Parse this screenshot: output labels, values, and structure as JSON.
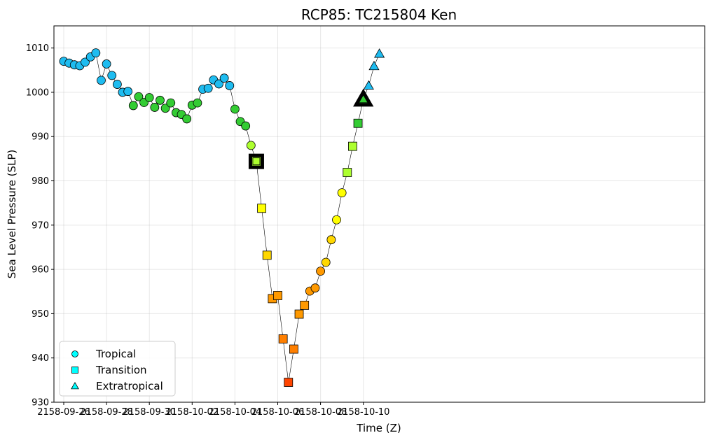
{
  "chart_data": {
    "type": "scatter",
    "title": "RCP85: TC215804 Ken",
    "xlabel": "Time (Z)",
    "ylabel": "Sea Level Pressure (SLP)",
    "ylim": [
      930,
      1015
    ],
    "yticks": [
      930,
      940,
      950,
      960,
      970,
      980,
      990,
      1000,
      1010
    ],
    "xticks": [
      "2158-09-26",
      "2158-09-28",
      "2158-09-30",
      "2158-10-02",
      "2158-10-04",
      "2158-10-06",
      "2158-10-08",
      "2158-10-10"
    ],
    "grid": true,
    "legend_position": "lower-left",
    "legend": [
      {
        "label": "Tropical",
        "marker": "circle"
      },
      {
        "label": "Transition",
        "marker": "square"
      },
      {
        "label": "Extratropical",
        "marker": "triangle"
      }
    ],
    "colors": {
      "TD": "#1ebcf0",
      "TS": "#33cc33",
      "C0": "#adff2f",
      "C1": "#ffff00",
      "C2": "#ffd700",
      "C3": "#ff9900",
      "C4": "#ff7f00",
      "C5": "#ff4500"
    },
    "points": [
      {
        "t": "2158-09-26 00:00",
        "slp": 1007.0,
        "phase": "Tropical",
        "cat": "TD"
      },
      {
        "t": "2158-09-26 06:00",
        "slp": 1006.6,
        "phase": "Tropical",
        "cat": "TD"
      },
      {
        "t": "2158-09-26 12:00",
        "slp": 1006.2,
        "phase": "Tropical",
        "cat": "TD"
      },
      {
        "t": "2158-09-26 18:00",
        "slp": 1006.0,
        "phase": "Tropical",
        "cat": "TD"
      },
      {
        "t": "2158-09-27 00:00",
        "slp": 1006.8,
        "phase": "Tropical",
        "cat": "TD"
      },
      {
        "t": "2158-09-27 06:00",
        "slp": 1008.0,
        "phase": "Tropical",
        "cat": "TD"
      },
      {
        "t": "2158-09-27 12:00",
        "slp": 1008.9,
        "phase": "Tropical",
        "cat": "TD"
      },
      {
        "t": "2158-09-27 18:00",
        "slp": 1002.7,
        "phase": "Tropical",
        "cat": "TD"
      },
      {
        "t": "2158-09-28 00:00",
        "slp": 1006.4,
        "phase": "Tropical",
        "cat": "TD"
      },
      {
        "t": "2158-09-28 06:00",
        "slp": 1003.8,
        "phase": "Tropical",
        "cat": "TD"
      },
      {
        "t": "2158-09-28 12:00",
        "slp": 1001.8,
        "phase": "Tropical",
        "cat": "TD"
      },
      {
        "t": "2158-09-28 18:00",
        "slp": 1000.0,
        "phase": "Tropical",
        "cat": "TD"
      },
      {
        "t": "2158-09-29 00:00",
        "slp": 1000.2,
        "phase": "Tropical",
        "cat": "TD"
      },
      {
        "t": "2158-09-29 06:00",
        "slp": 997.0,
        "phase": "Tropical",
        "cat": "TS"
      },
      {
        "t": "2158-09-29 12:00",
        "slp": 999.0,
        "phase": "Tropical",
        "cat": "TS"
      },
      {
        "t": "2158-09-29 18:00",
        "slp": 997.7,
        "phase": "Tropical",
        "cat": "TS"
      },
      {
        "t": "2158-09-30 00:00",
        "slp": 998.8,
        "phase": "Tropical",
        "cat": "TS"
      },
      {
        "t": "2158-09-30 06:00",
        "slp": 996.6,
        "phase": "Tropical",
        "cat": "TS"
      },
      {
        "t": "2158-09-30 12:00",
        "slp": 998.2,
        "phase": "Tropical",
        "cat": "TS"
      },
      {
        "t": "2158-09-30 18:00",
        "slp": 996.4,
        "phase": "Tropical",
        "cat": "TS"
      },
      {
        "t": "2158-10-01 00:00",
        "slp": 997.6,
        "phase": "Tropical",
        "cat": "TS"
      },
      {
        "t": "2158-10-01 06:00",
        "slp": 995.4,
        "phase": "Tropical",
        "cat": "TS"
      },
      {
        "t": "2158-10-01 12:00",
        "slp": 995.0,
        "phase": "Tropical",
        "cat": "TS"
      },
      {
        "t": "2158-10-01 18:00",
        "slp": 994.0,
        "phase": "Tropical",
        "cat": "TS"
      },
      {
        "t": "2158-10-02 00:00",
        "slp": 997.1,
        "phase": "Tropical",
        "cat": "TS"
      },
      {
        "t": "2158-10-02 06:00",
        "slp": 997.6,
        "phase": "Tropical",
        "cat": "TS"
      },
      {
        "t": "2158-10-02 12:00",
        "slp": 1000.7,
        "phase": "Tropical",
        "cat": "TD"
      },
      {
        "t": "2158-10-02 18:00",
        "slp": 1000.9,
        "phase": "Tropical",
        "cat": "TD"
      },
      {
        "t": "2158-10-03 00:00",
        "slp": 1002.8,
        "phase": "Tropical",
        "cat": "TD"
      },
      {
        "t": "2158-10-03 06:00",
        "slp": 1001.9,
        "phase": "Tropical",
        "cat": "TD"
      },
      {
        "t": "2158-10-03 12:00",
        "slp": 1003.2,
        "phase": "Tropical",
        "cat": "TD"
      },
      {
        "t": "2158-10-03 18:00",
        "slp": 1001.5,
        "phase": "Tropical",
        "cat": "TD"
      },
      {
        "t": "2158-10-04 00:00",
        "slp": 996.2,
        "phase": "Tropical",
        "cat": "TS"
      },
      {
        "t": "2158-10-04 06:00",
        "slp": 993.4,
        "phase": "Tropical",
        "cat": "TS"
      },
      {
        "t": "2158-10-04 12:00",
        "slp": 992.4,
        "phase": "Tropical",
        "cat": "TS"
      },
      {
        "t": "2158-10-04 18:00",
        "slp": 988.0,
        "phase": "Tropical",
        "cat": "C0"
      },
      {
        "t": "2158-10-05 00:00",
        "slp": 984.4,
        "phase": "Transition",
        "cat": "C0",
        "highlight": true
      },
      {
        "t": "2158-10-05 06:00",
        "slp": 973.8,
        "phase": "Transition",
        "cat": "C1"
      },
      {
        "t": "2158-10-05 12:00",
        "slp": 963.2,
        "phase": "Transition",
        "cat": "C2"
      },
      {
        "t": "2158-10-05 18:00",
        "slp": 953.4,
        "phase": "Transition",
        "cat": "C3"
      },
      {
        "t": "2158-10-06 00:00",
        "slp": 954.1,
        "phase": "Transition",
        "cat": "C3"
      },
      {
        "t": "2158-10-06 06:00",
        "slp": 944.3,
        "phase": "Transition",
        "cat": "C4"
      },
      {
        "t": "2158-10-06 12:00",
        "slp": 934.5,
        "phase": "Transition",
        "cat": "C5"
      },
      {
        "t": "2158-10-06 18:00",
        "slp": 942.0,
        "phase": "Transition",
        "cat": "C4"
      },
      {
        "t": "2158-10-07 00:00",
        "slp": 949.9,
        "phase": "Transition",
        "cat": "C3"
      },
      {
        "t": "2158-10-07 06:00",
        "slp": 951.9,
        "phase": "Transition",
        "cat": "C3"
      },
      {
        "t": "2158-10-07 12:00",
        "slp": 955.1,
        "phase": "Tropical",
        "cat": "C3"
      },
      {
        "t": "2158-10-07 18:00",
        "slp": 955.8,
        "phase": "Tropical",
        "cat": "C3"
      },
      {
        "t": "2158-10-08 00:00",
        "slp": 959.6,
        "phase": "Tropical",
        "cat": "C3"
      },
      {
        "t": "2158-10-08 06:00",
        "slp": 961.6,
        "phase": "Tropical",
        "cat": "C2"
      },
      {
        "t": "2158-10-08 12:00",
        "slp": 966.7,
        "phase": "Tropical",
        "cat": "C2"
      },
      {
        "t": "2158-10-08 18:00",
        "slp": 971.2,
        "phase": "Tropical",
        "cat": "C1"
      },
      {
        "t": "2158-10-09 00:00",
        "slp": 977.3,
        "phase": "Tropical",
        "cat": "C1"
      },
      {
        "t": "2158-10-09 06:00",
        "slp": 981.9,
        "phase": "Transition",
        "cat": "C0"
      },
      {
        "t": "2158-10-09 12:00",
        "slp": 987.8,
        "phase": "Transition",
        "cat": "C0"
      },
      {
        "t": "2158-10-09 18:00",
        "slp": 993.0,
        "phase": "Transition",
        "cat": "TS"
      },
      {
        "t": "2158-10-10 00:00",
        "slp": 998.4,
        "phase": "Extratropical",
        "cat": "TS",
        "highlight": true
      },
      {
        "t": "2158-10-10 06:00",
        "slp": 1001.5,
        "phase": "Extratropical",
        "cat": "TD"
      },
      {
        "t": "2158-10-10 12:00",
        "slp": 1005.9,
        "phase": "Extratropical",
        "cat": "TD"
      },
      {
        "t": "2158-10-10 18:00",
        "slp": 1008.7,
        "phase": "Extratropical",
        "cat": "TD"
      }
    ]
  }
}
